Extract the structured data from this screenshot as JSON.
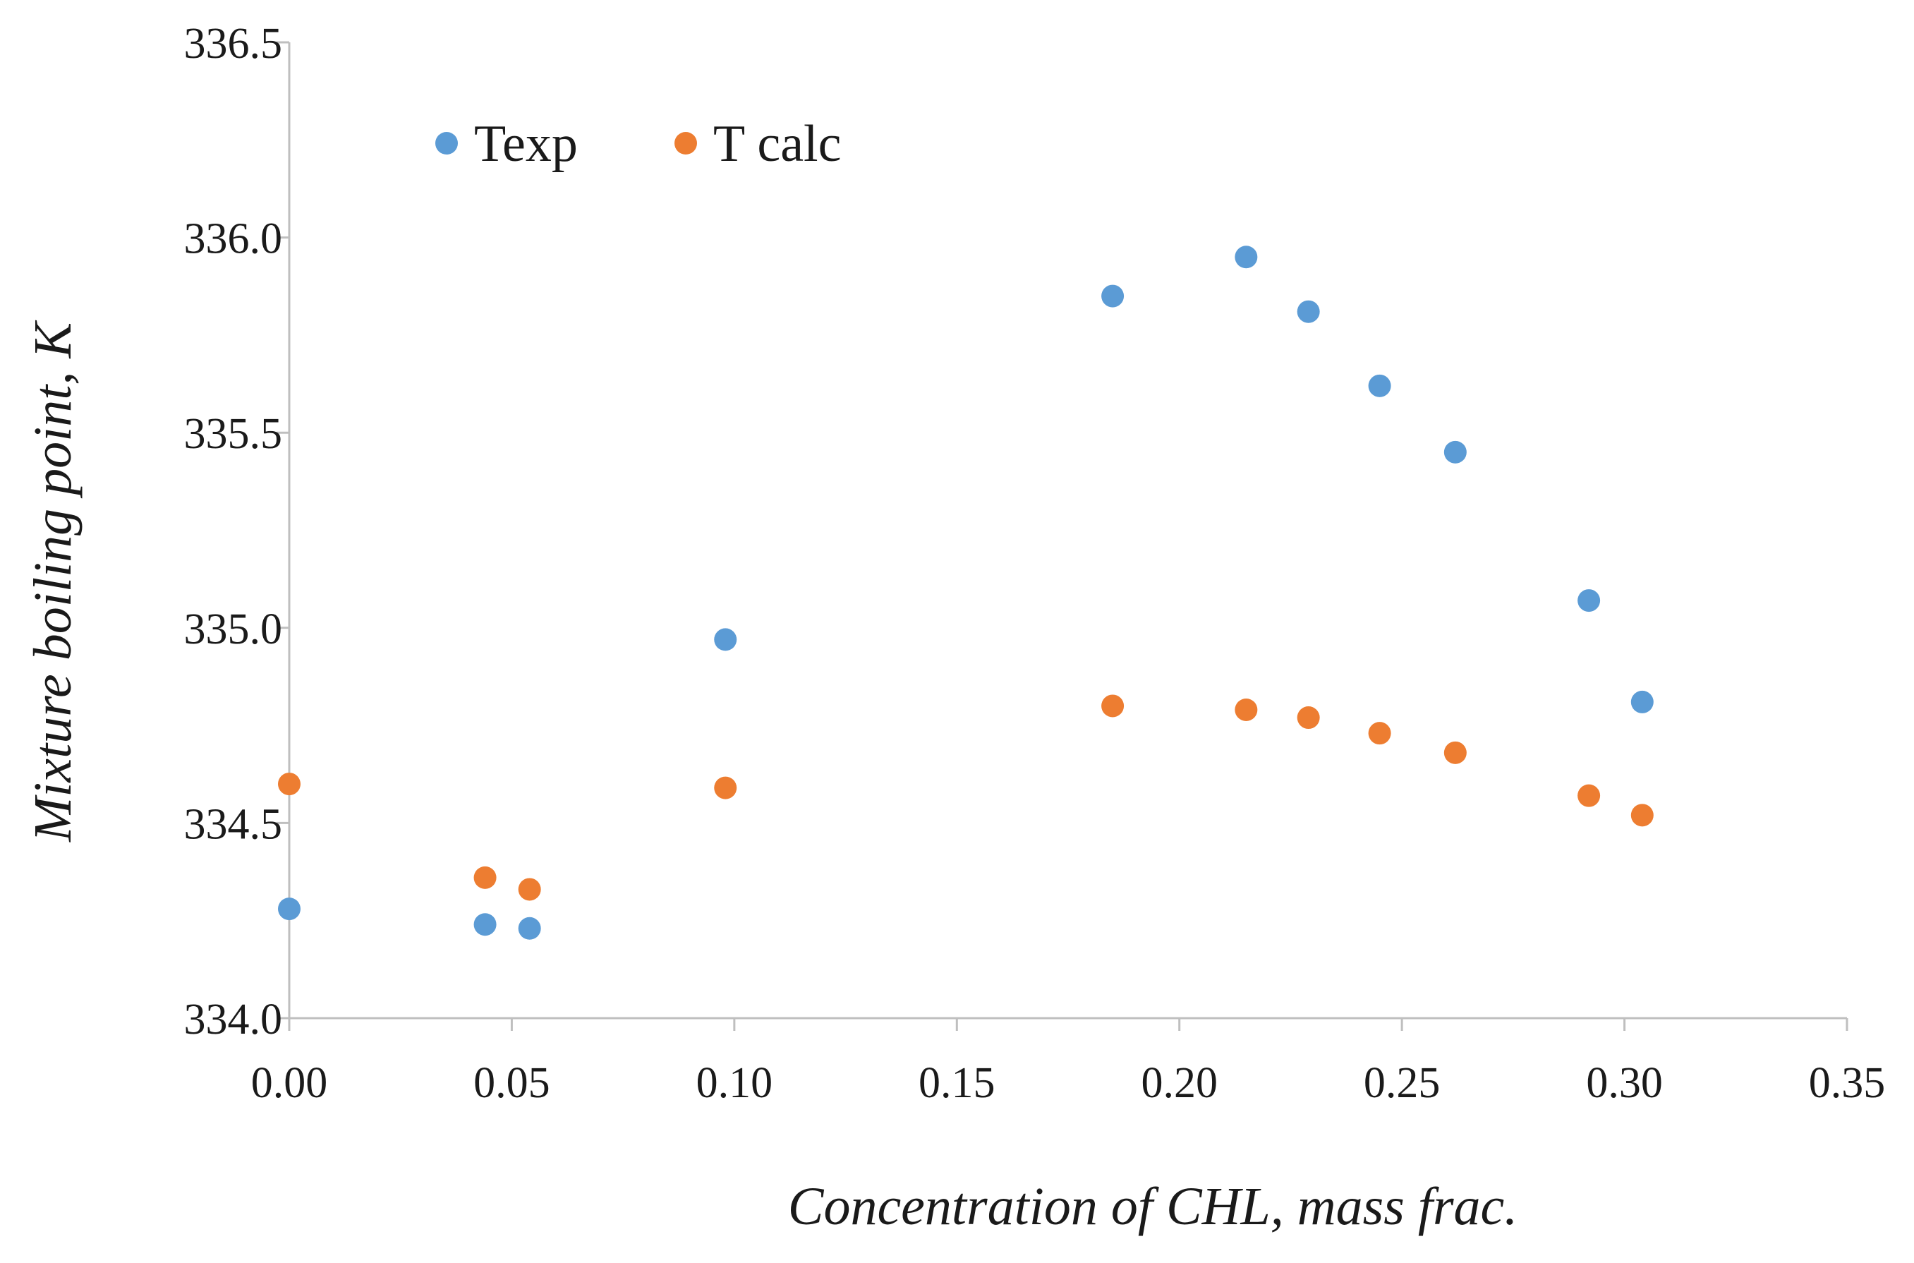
{
  "chart_data": {
    "type": "scatter",
    "title": "",
    "xlabel": "Concentration of CHL, mass frac.",
    "ylabel": "Mixture boiling point, K",
    "xlim": [
      0,
      0.35
    ],
    "ylim": [
      334.0,
      336.5
    ],
    "x_ticks": [
      "0.00",
      "0.05",
      "0.10",
      "0.15",
      "0.20",
      "0.25",
      "0.30",
      "0.35"
    ],
    "y_ticks": [
      "334.0",
      "334.5",
      "335.0",
      "335.5",
      "336.0",
      "336.5"
    ],
    "grid": false,
    "legend_position": "top-left",
    "series": [
      {
        "name": "Texp",
        "color": "#5b9bd5",
        "x": [
          0.0,
          0.044,
          0.054,
          0.098,
          0.185,
          0.215,
          0.229,
          0.245,
          0.262,
          0.292,
          0.304
        ],
        "y": [
          334.28,
          334.24,
          334.23,
          334.97,
          335.85,
          335.95,
          335.81,
          335.62,
          335.45,
          335.07,
          334.81
        ]
      },
      {
        "name": "T calc",
        "color": "#ed7d31",
        "x": [
          0.0,
          0.044,
          0.054,
          0.098,
          0.185,
          0.215,
          0.229,
          0.245,
          0.262,
          0.292,
          0.304
        ],
        "y": [
          334.6,
          334.36,
          334.33,
          334.59,
          334.8,
          334.79,
          334.77,
          334.73,
          334.68,
          334.57,
          334.52
        ]
      }
    ]
  }
}
